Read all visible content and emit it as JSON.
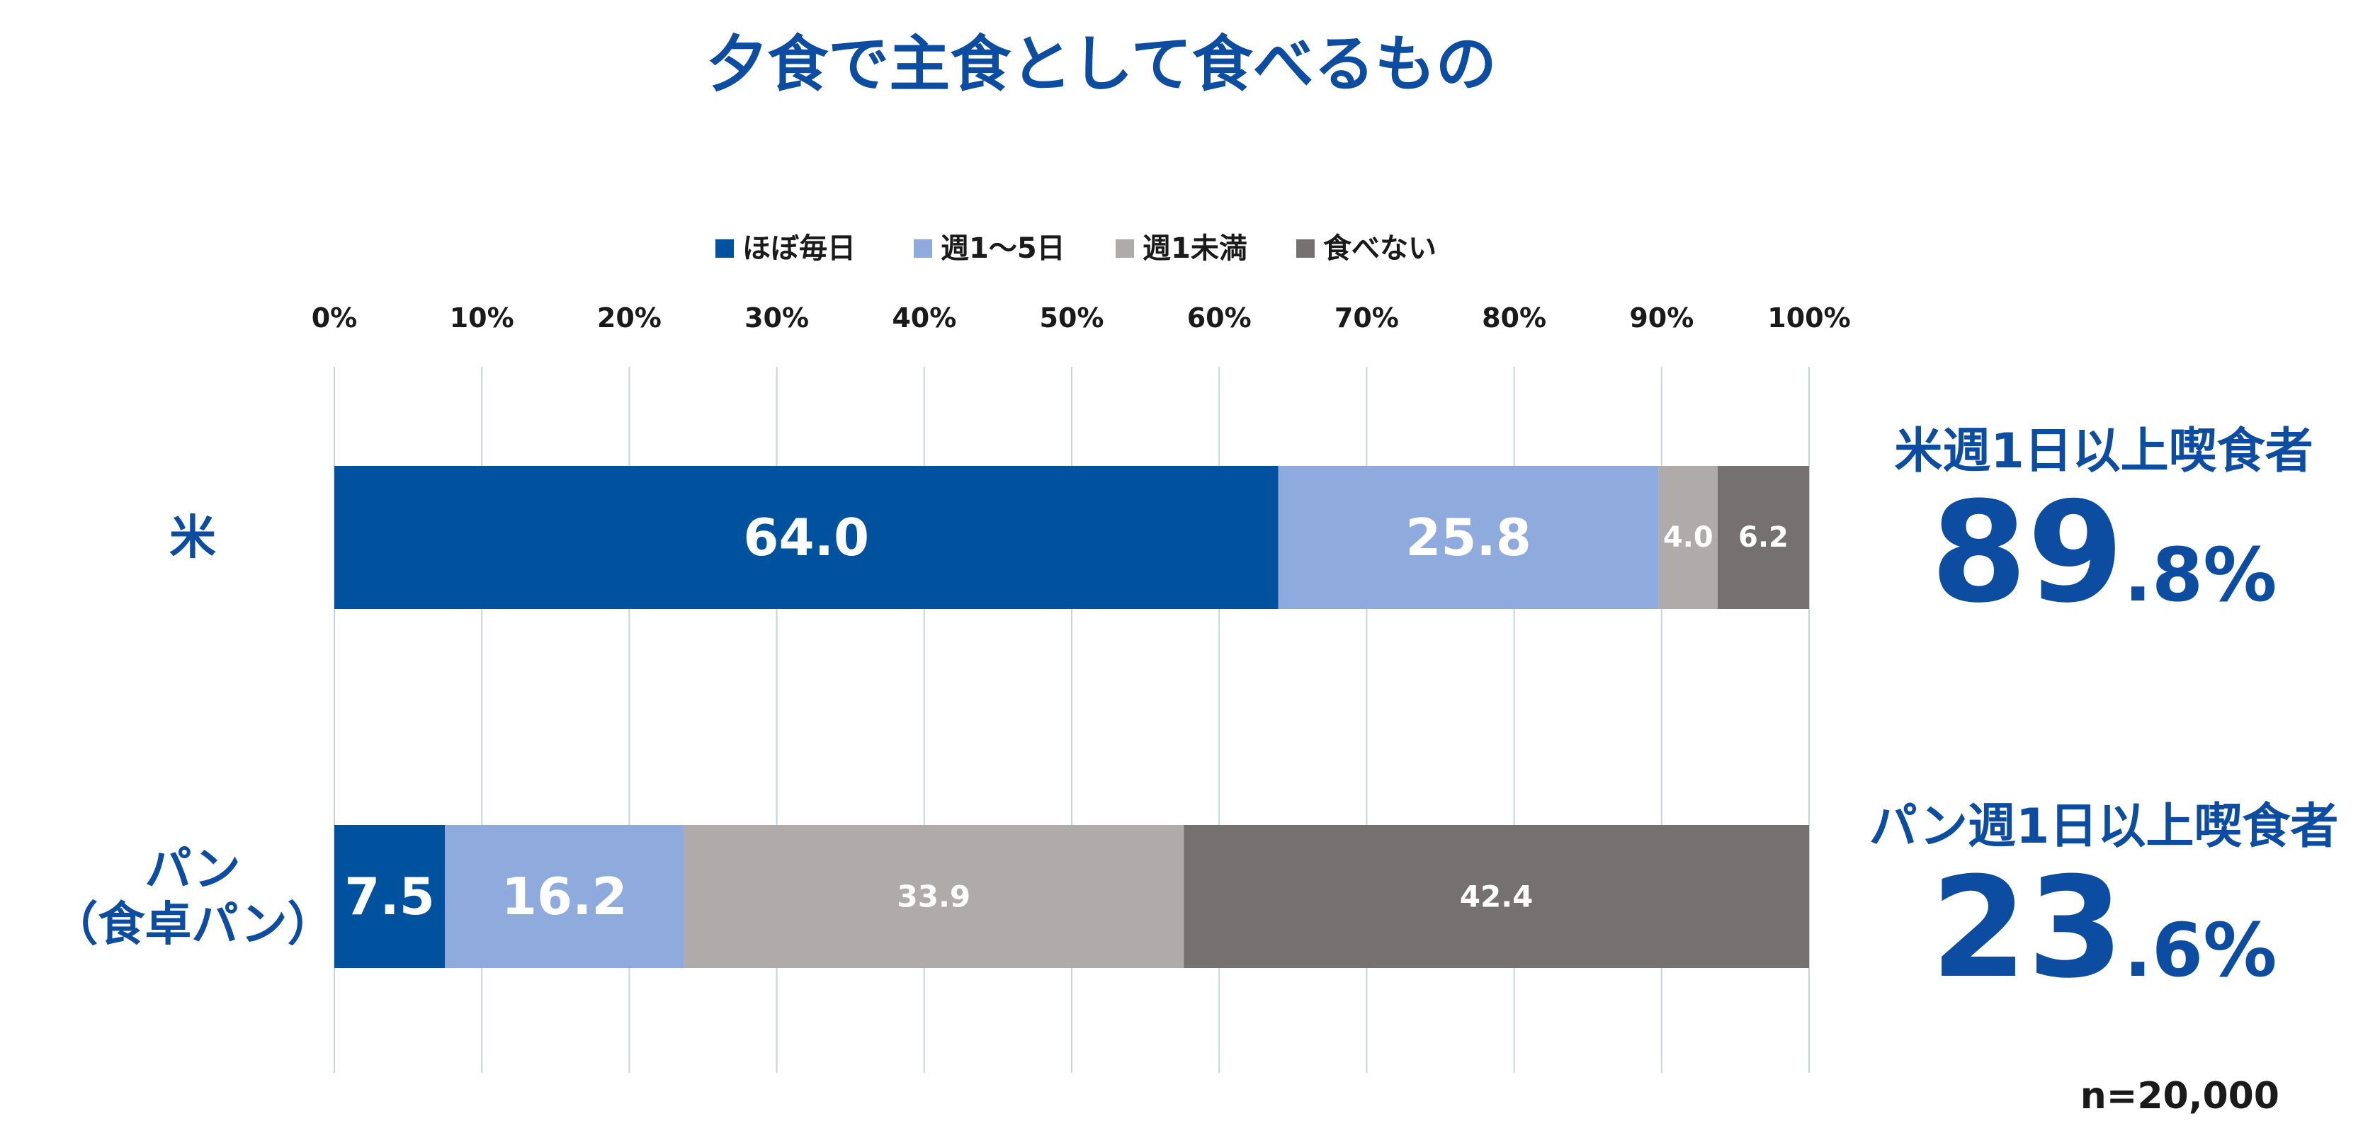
{
  "chart_data": {
    "type": "bar",
    "orientation": "horizontal",
    "stacked": true,
    "title": "夕食で主食として食べるもの",
    "categories": [
      "米",
      "パン\n（食卓パン）"
    ],
    "series": [
      {
        "name": "ほぼ毎日",
        "values": [
          64.0,
          7.5
        ],
        "labels": [
          "64.0",
          "7.5"
        ],
        "color": "#00529F",
        "label_color": "#FFFFFF"
      },
      {
        "name": "週1～5日",
        "values": [
          25.8,
          16.2
        ],
        "labels": [
          "25.8",
          "16.2"
        ],
        "color": "#8FAADC",
        "label_color": "#FFFFFF"
      },
      {
        "name": "週1未満",
        "values": [
          4.0,
          33.9
        ],
        "labels": [
          "4.0",
          "33.9"
        ],
        "color": "#AFABAB",
        "label_color": "#FFFFFF"
      },
      {
        "name": "食べない",
        "values": [
          6.2,
          42.4
        ],
        "labels": [
          "6.2",
          "42.4"
        ],
        "color": "#767171",
        "label_color": "#FFFFFF"
      }
    ],
    "x_ticks": [
      "0%",
      "10%",
      "20%",
      "30%",
      "40%",
      "50%",
      "60%",
      "70%",
      "80%",
      "90%",
      "100%"
    ],
    "xlim": [
      0,
      100
    ],
    "grid": true,
    "legend_position": "top",
    "annotations": [
      {
        "label": "米週1日以上喫食者",
        "value_int": "89",
        "value_frac": ".8%"
      },
      {
        "label": "パン週1日以上喫食者",
        "value_int": "23",
        "value_frac": ".6%"
      }
    ],
    "note": "n=20,000"
  },
  "colors": {
    "title": "#0C4DA2",
    "category": "#0C4DA2",
    "annotation": "#0C4DA2",
    "axis_text": "#1A1A1A",
    "grid": "#C9D3DC"
  }
}
